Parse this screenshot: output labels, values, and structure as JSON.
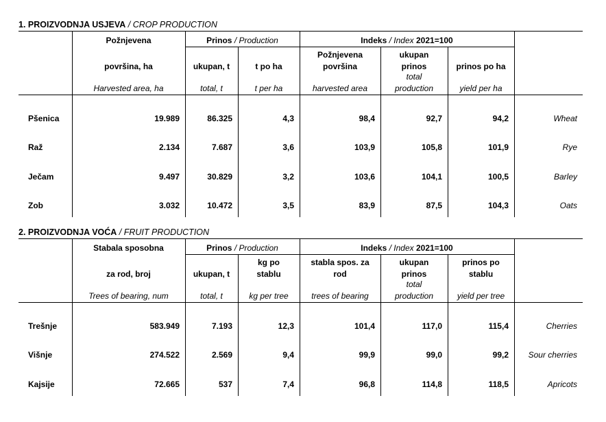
{
  "sections": [
    {
      "title": "1. PROIZVODNJA USJEVA",
      "title_en": "/ CROP PRODUCTION",
      "header": {
        "first_top": "Požnjevena",
        "first": [
          "površina, ha"
        ],
        "first_en": [
          "Harvested area, ha"
        ],
        "group1": "Prinos",
        "group1_en": "/ Production",
        "group1_cols": [
          {
            "label": [
              "ukupan, t"
            ],
            "label_en": [
              "total, t"
            ]
          },
          {
            "label": [
              "t po ha"
            ],
            "label_en": [
              "t per ha"
            ]
          }
        ],
        "group2": "Indeks",
        "group2_en": "/ Index",
        "group2_base": "2021=100",
        "group2_cols": [
          {
            "label": [
              "Požnjevena",
              "površina"
            ],
            "label_en": [
              "harvested area"
            ]
          },
          {
            "label": [
              "ukupan",
              "prinos"
            ],
            "label_en": [
              "total",
              "production"
            ]
          },
          {
            "label": [
              "prinos po ha"
            ],
            "label_en": [
              "yield per ha"
            ]
          }
        ]
      },
      "rows": [
        {
          "name": "Pšenica",
          "values": [
            "19.989",
            "86.325",
            "4,3",
            "98,4",
            "92,7",
            "94,2"
          ],
          "name_en": "Wheat"
        },
        {
          "name": "Raž",
          "values": [
            "2.134",
            "7.687",
            "3,6",
            "103,9",
            "105,8",
            "101,9"
          ],
          "name_en": "Rye"
        },
        {
          "name": "Ječam",
          "values": [
            "9.497",
            "30.829",
            "3,2",
            "103,6",
            "104,1",
            "100,5"
          ],
          "name_en": "Barley"
        },
        {
          "name": "Zob",
          "values": [
            "3.032",
            "10.472",
            "3,5",
            "83,9",
            "87,5",
            "104,3"
          ],
          "name_en": "Oats"
        }
      ]
    },
    {
      "title": "2. PROIZVODNJA VOĆA",
      "title_en": "/ FRUIT PRODUCTION",
      "header": {
        "first_top": "Stabala sposobna",
        "first": [
          "za rod, broj"
        ],
        "first_en": [
          "Trees of bearing, num"
        ],
        "group1": "Prinos",
        "group1_en": "/ Production",
        "group1_cols": [
          {
            "label": [
              "ukupan, t"
            ],
            "label_en": [
              "total, t"
            ]
          },
          {
            "label": [
              "kg po",
              "stablu"
            ],
            "label_en": [
              "kg per tree"
            ]
          }
        ],
        "group2": "Indeks",
        "group2_en": "/ Index",
        "group2_base": "2021=100",
        "group2_cols": [
          {
            "label": [
              "stabla spos. za",
              "rod"
            ],
            "label_en": [
              "trees of bearing"
            ]
          },
          {
            "label": [
              "ukupan",
              "prinos"
            ],
            "label_en": [
              "total",
              "production"
            ]
          },
          {
            "label": [
              "prinos po",
              "stablu"
            ],
            "label_en": [
              "yield per tree"
            ]
          }
        ]
      },
      "rows": [
        {
          "name": "Trešnje",
          "values": [
            "583.949",
            "7.193",
            "12,3",
            "101,4",
            "117,0",
            "115,4"
          ],
          "name_en": "Cherries"
        },
        {
          "name": "Višnje",
          "values": [
            "274.522",
            "2.569",
            "9,4",
            "99,9",
            "99,0",
            "99,2"
          ],
          "name_en": "Sour cherries"
        },
        {
          "name": "Kajsije",
          "values": [
            "72.665",
            "537",
            "7,4",
            "96,8",
            "114,8",
            "118,5"
          ],
          "name_en": "Apricots"
        }
      ]
    }
  ]
}
